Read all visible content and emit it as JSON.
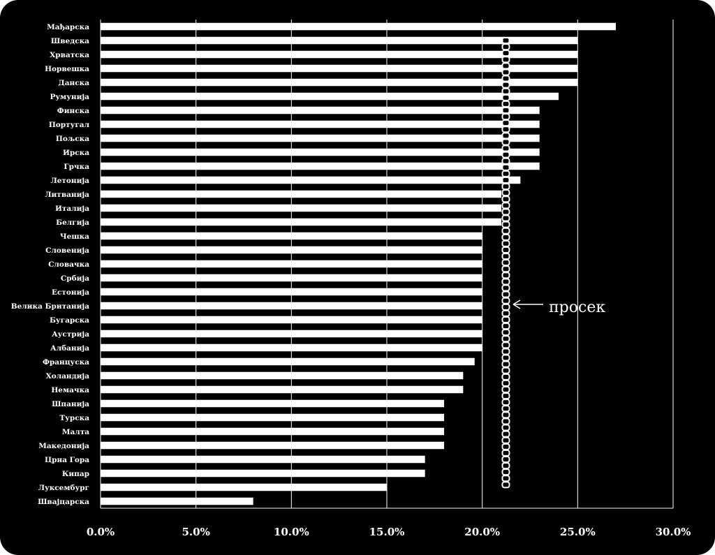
{
  "chart_data": {
    "type": "bar",
    "orientation": "horizontal",
    "categories": [
      "Мађарска",
      "Шведска",
      "Хрватска",
      "Норвешка",
      "Данска",
      "Румунија",
      "Финска",
      "Португал",
      "Пољска",
      "Ирска",
      "Грчка",
      "Летонија",
      "Литванија",
      "Италија",
      "Белгија",
      "Чешка",
      "Словенија",
      "Словачка",
      "Србија",
      "Естонија",
      "Велика Британија",
      "Бугарска",
      "Аустрија",
      "Албанија",
      "Француска",
      "Холандија",
      "Немачка",
      "Шпанија",
      "Турска",
      "Малта",
      "Македонија",
      "Црна Гора",
      "Кипар",
      "Луксембург",
      "Швајцарска"
    ],
    "values": [
      27,
      25,
      25,
      25,
      25,
      24,
      23,
      23,
      23,
      23,
      23,
      22,
      21,
      21,
      21,
      20,
      20,
      20,
      20,
      20,
      20,
      20,
      20,
      20,
      19.6,
      19,
      19,
      18,
      18,
      18,
      18,
      17,
      17,
      15,
      8
    ],
    "xlim": [
      0,
      30
    ],
    "xticks": [
      "0.0%",
      "5.0%",
      "10.0%",
      "15.0%",
      "20.0%",
      "25.0%",
      "30.0%"
    ],
    "average": 21.2,
    "annotation": "просек",
    "grid": true,
    "colors": {
      "background": "#000000",
      "bar": "#ffffff",
      "text": "#ffffff",
      "grid": "#ffffff"
    }
  }
}
